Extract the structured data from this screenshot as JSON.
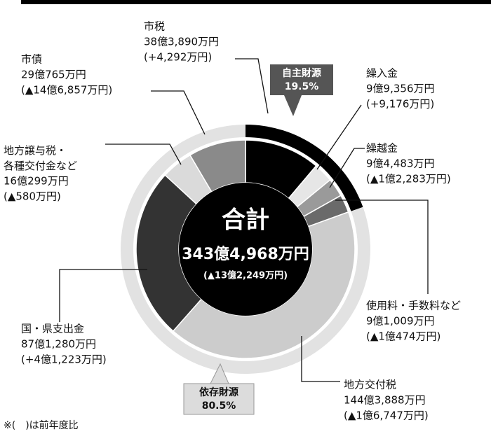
{
  "chart_data": {
    "type": "donut",
    "title": "合計",
    "total": 3434968,
    "total_label": "343億4,968万円",
    "total_change": "(▲13億2,249万円)",
    "categories": [
      "市税",
      "繰入金",
      "繰越金",
      "使用料・手数料など",
      "地方交付税",
      "国・県支出金",
      "地方譲与税・\n各種交付金など",
      "市債"
    ],
    "values": [
      383890,
      99356,
      94483,
      91009,
      1443888,
      871280,
      160299,
      290765
    ],
    "value_labels": [
      "38億3,890万円",
      "9億9,356万円",
      "9億4,483万円",
      "9億1,009万円",
      "144億3,888万円",
      "87億1,280万円",
      "16億299万円",
      "29億765万円"
    ],
    "changes": [
      "(+4,292万円)",
      "(+9,176万円)",
      "(▲1億2,283万円)",
      "(▲1億474万円)",
      "(▲1億6,747万円)",
      "(+4億1,223万円)",
      "(▲580万円)",
      "(▲14億6,857万円)"
    ],
    "colors": [
      "#000000",
      "#e6e6e6",
      "#9a9a9a",
      "#6a6a6a",
      "#cccccc",
      "#333333",
      "#dadada",
      "#8a8a8a"
    ],
    "groups": [
      {
        "name": "自主財源",
        "value": 19.5,
        "value_label": "19.5%",
        "color": "#000000"
      },
      {
        "name": "依存財源",
        "value": 80.5,
        "value_label": "80.5%",
        "color": "#e2e2e2"
      }
    ],
    "note": "※(　)は前年度比"
  }
}
